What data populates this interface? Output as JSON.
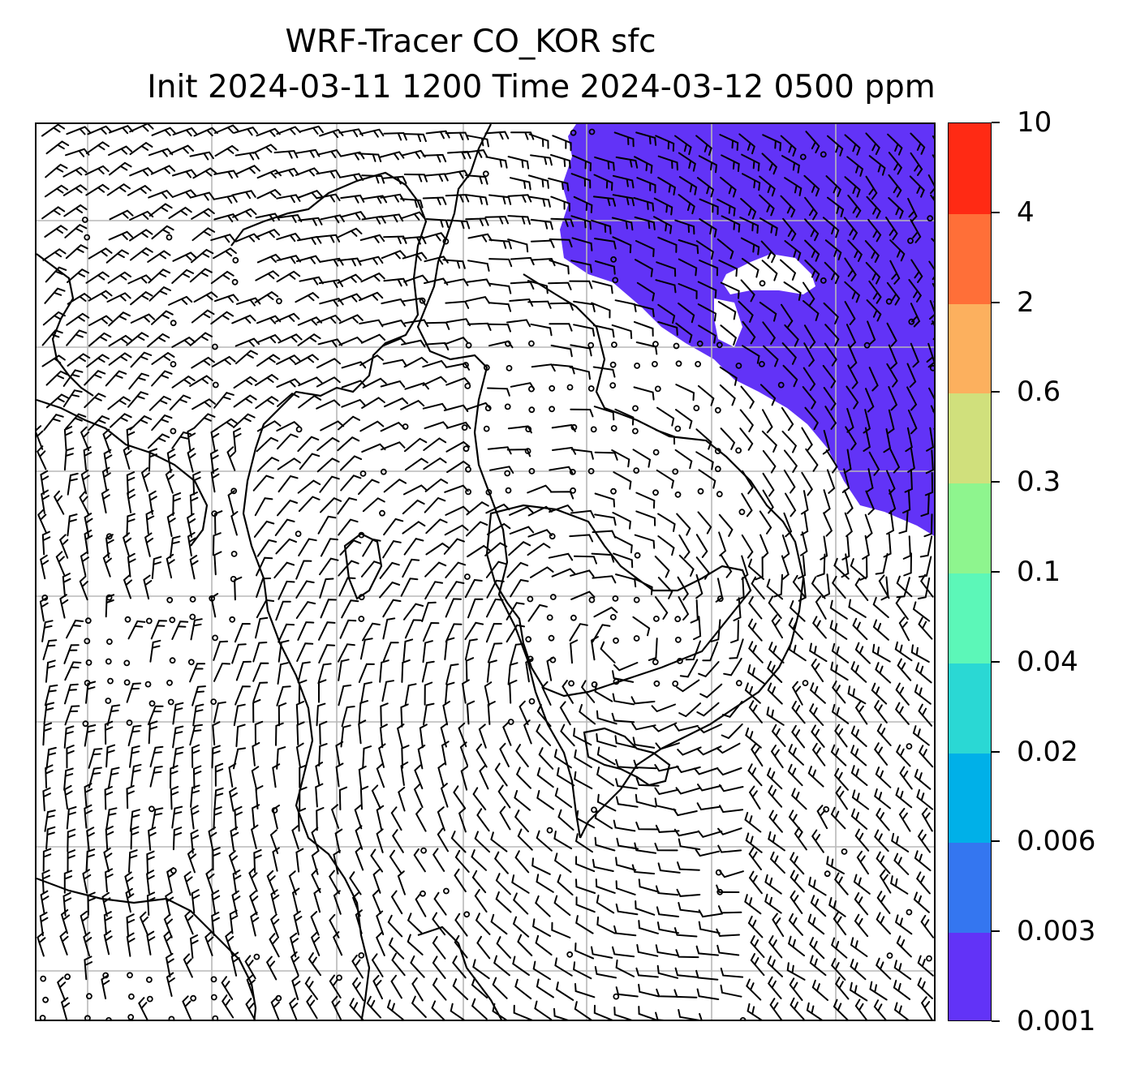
{
  "title": {
    "line1": "WRF-Tracer CO_KOR sfc",
    "line2": "Init 2024-03-11 1200 Time 2024-03-12 0500 ppm"
  },
  "map": {
    "field_color": "#6233f7",
    "gridlines": "on",
    "grid_color": "#b8b8b8",
    "coastline_color": "#000000",
    "barb_color": "#000000",
    "background": "#ffffff"
  },
  "colorbar": {
    "levels": [
      "0.001",
      "0.003",
      "0.006",
      "0.02",
      "0.04",
      "0.1",
      "0.3",
      "0.6",
      "2",
      "4",
      "10"
    ],
    "colors": [
      "#6233f7",
      "#3476f0",
      "#00b0e8",
      "#2ad8d4",
      "#5cf7b8",
      "#8ef58e",
      "#d0e07c",
      "#fcb05e",
      "#ff6f38",
      "#ff2a14"
    ]
  }
}
